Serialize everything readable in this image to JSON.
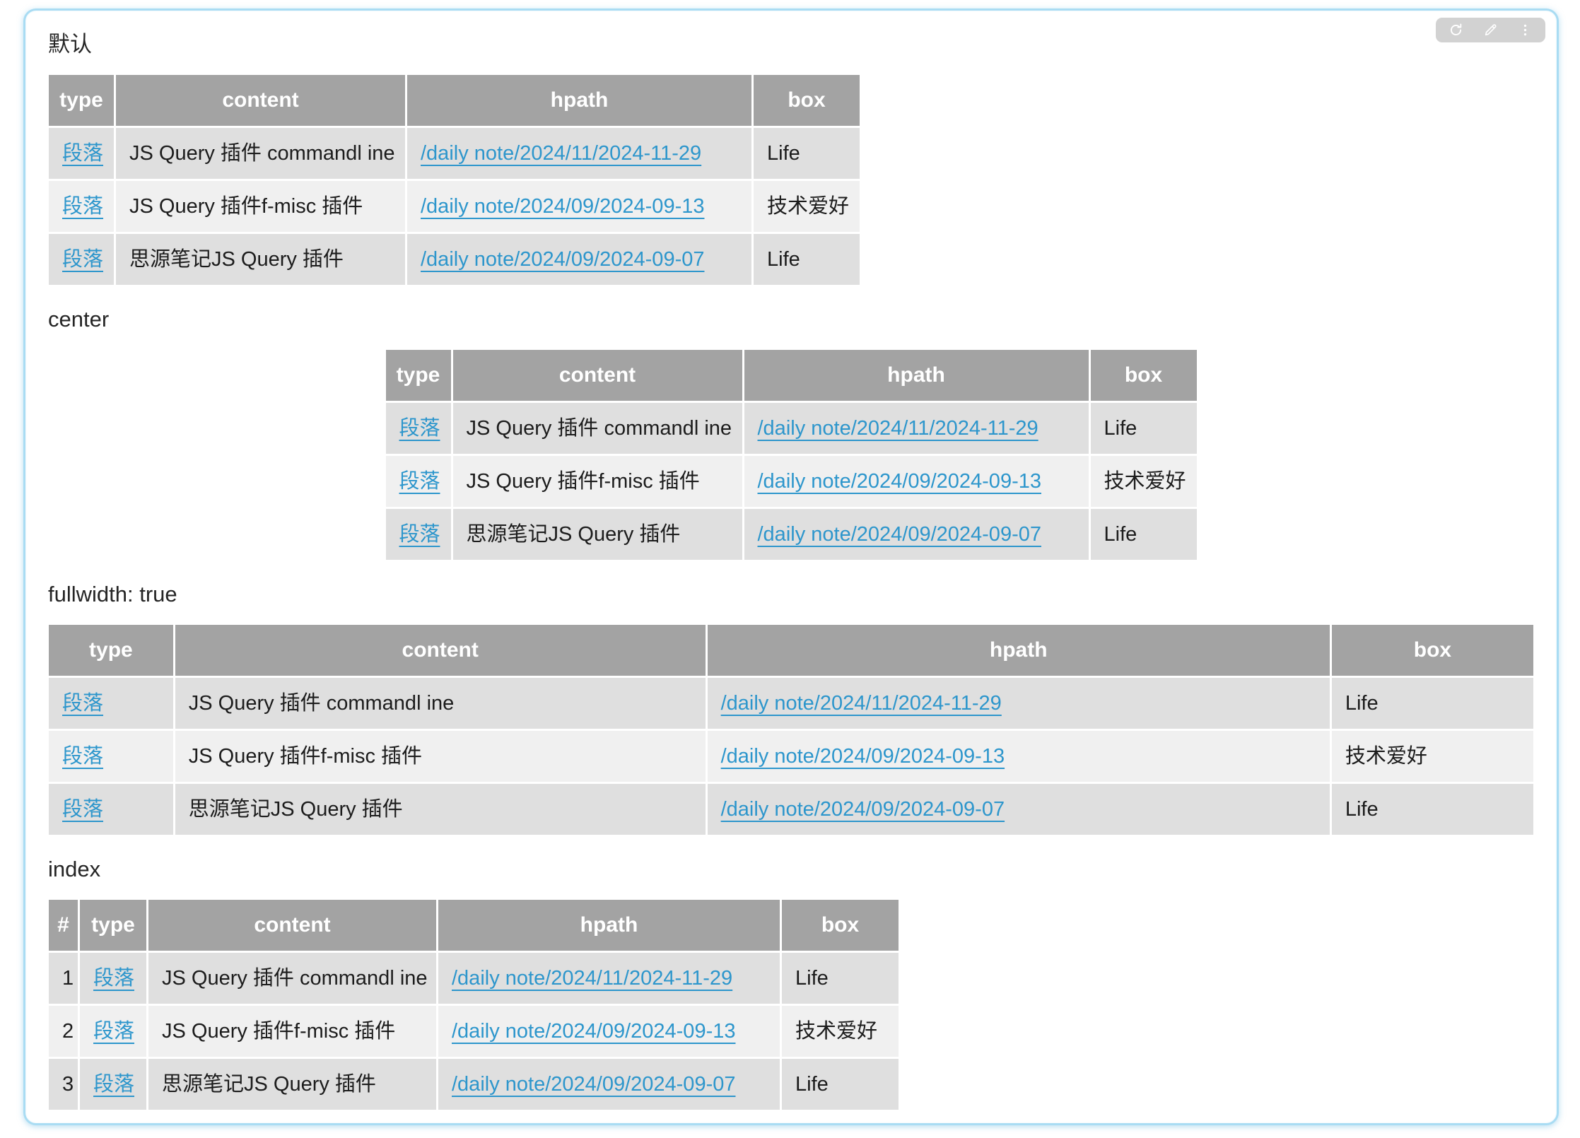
{
  "panel": {
    "accent_border_color": "#a9dcf3",
    "link_color": "#2d96cc",
    "header_bg": "#a3a3a3",
    "row_odd_bg": "#dfdfdf",
    "row_even_bg": "#f0f0f0",
    "toolbar": {
      "icons": [
        "refresh-icon",
        "edit-icon",
        "more-icon"
      ]
    }
  },
  "columns": {
    "num": "#",
    "type": "type",
    "content": "content",
    "hpath": "hpath",
    "box": "box"
  },
  "rows": [
    {
      "num": "1",
      "type": "段落",
      "content": "JS Query 插件 commandl ine",
      "hpath": "/daily note/2024/11/2024-11-29",
      "box": "Life"
    },
    {
      "num": "2",
      "type": "段落",
      "content": "JS Query 插件f-misc 插件",
      "hpath": "/daily note/2024/09/2024-09-13",
      "box": "技术爱好"
    },
    {
      "num": "3",
      "type": "段落",
      "content": "思源笔记JS Query 插件",
      "hpath": "/daily note/2024/09/2024-09-07",
      "box": "Life"
    }
  ],
  "sections": [
    {
      "id": "default",
      "label": "默认",
      "table_style": "default",
      "with_index": false
    },
    {
      "id": "center",
      "label": "center",
      "table_style": "center",
      "with_index": false
    },
    {
      "id": "fullwidth",
      "label": "fullwidth: true",
      "table_style": "fullwidth",
      "with_index": false
    },
    {
      "id": "index",
      "label": "index",
      "table_style": "index",
      "with_index": true
    }
  ]
}
